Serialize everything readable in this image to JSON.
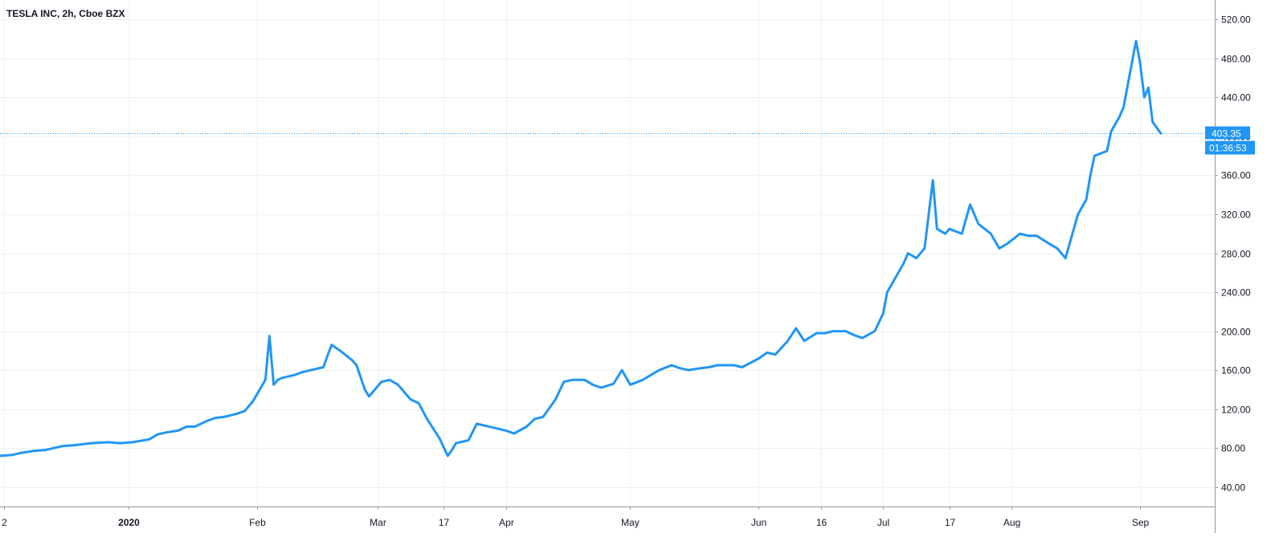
{
  "chart_data": {
    "type": "line",
    "title": "TESLA INC, 2h, Cboe BZX",
    "ylim": [
      20,
      540
    ],
    "y_ticks": [
      "40.00",
      "80.00",
      "120.00",
      "160.00",
      "200.00",
      "240.00",
      "280.00",
      "320.00",
      "360.00",
      "400.00",
      "440.00",
      "480.00",
      "520.00"
    ],
    "x_ticks": [
      {
        "label": "2",
        "date": "2019-12-02",
        "bold": false
      },
      {
        "label": "2020",
        "date": "2020-01-01",
        "bold": true
      },
      {
        "label": "Feb",
        "date": "2020-02-01",
        "bold": false
      },
      {
        "label": "Mar",
        "date": "2020-03-01",
        "bold": false
      },
      {
        "label": "17",
        "date": "2020-03-17",
        "bold": false
      },
      {
        "label": "Apr",
        "date": "2020-04-01",
        "bold": false
      },
      {
        "label": "May",
        "date": "2020-05-01",
        "bold": false
      },
      {
        "label": "Jun",
        "date": "2020-06-01",
        "bold": false
      },
      {
        "label": "16",
        "date": "2020-06-16",
        "bold": false
      },
      {
        "label": "Jul",
        "date": "2020-07-01",
        "bold": false
      },
      {
        "label": "17",
        "date": "2020-07-17",
        "bold": false
      },
      {
        "label": "Aug",
        "date": "2020-08-01",
        "bold": false
      },
      {
        "label": "Sep",
        "date": "2020-09-01",
        "bold": false
      }
    ],
    "series": [
      {
        "color": "#2196f3",
        "points": [
          [
            "2019-12-01",
            72
          ],
          [
            "2019-12-04",
            73
          ],
          [
            "2019-12-06",
            75
          ],
          [
            "2019-12-09",
            77
          ],
          [
            "2019-12-12",
            78
          ],
          [
            "2019-12-16",
            82
          ],
          [
            "2019-12-19",
            83
          ],
          [
            "2019-12-23",
            85
          ],
          [
            "2019-12-27",
            86
          ],
          [
            "2019-12-30",
            85
          ],
          [
            "2020-01-02",
            86
          ],
          [
            "2020-01-06",
            89
          ],
          [
            "2020-01-08",
            94
          ],
          [
            "2020-01-10",
            96
          ],
          [
            "2020-01-13",
            98
          ],
          [
            "2020-01-15",
            102
          ],
          [
            "2020-01-17",
            102
          ],
          [
            "2020-01-20",
            108
          ],
          [
            "2020-01-22",
            111
          ],
          [
            "2020-01-24",
            112
          ],
          [
            "2020-01-27",
            115
          ],
          [
            "2020-01-29",
            118
          ],
          [
            "2020-01-31",
            128
          ],
          [
            "2020-02-03",
            150
          ],
          [
            "2020-02-04",
            195
          ],
          [
            "2020-02-05",
            145
          ],
          [
            "2020-02-06",
            150
          ],
          [
            "2020-02-07",
            152
          ],
          [
            "2020-02-10",
            155
          ],
          [
            "2020-02-12",
            158
          ],
          [
            "2020-02-14",
            160
          ],
          [
            "2020-02-17",
            163
          ],
          [
            "2020-02-18",
            175
          ],
          [
            "2020-02-19",
            186
          ],
          [
            "2020-02-21",
            180
          ],
          [
            "2020-02-24",
            170
          ],
          [
            "2020-02-25",
            165
          ],
          [
            "2020-02-27",
            140
          ],
          [
            "2020-02-28",
            133
          ],
          [
            "2020-03-02",
            148
          ],
          [
            "2020-03-04",
            150
          ],
          [
            "2020-03-06",
            145
          ],
          [
            "2020-03-09",
            130
          ],
          [
            "2020-03-11",
            126
          ],
          [
            "2020-03-13",
            110
          ],
          [
            "2020-03-16",
            90
          ],
          [
            "2020-03-18",
            72
          ],
          [
            "2020-03-19",
            78
          ],
          [
            "2020-03-20",
            85
          ],
          [
            "2020-03-23",
            88
          ],
          [
            "2020-03-25",
            105
          ],
          [
            "2020-03-27",
            103
          ],
          [
            "2020-03-30",
            100
          ],
          [
            "2020-04-01",
            98
          ],
          [
            "2020-04-03",
            95
          ],
          [
            "2020-04-06",
            102
          ],
          [
            "2020-04-08",
            110
          ],
          [
            "2020-04-10",
            112
          ],
          [
            "2020-04-13",
            130
          ],
          [
            "2020-04-15",
            148
          ],
          [
            "2020-04-17",
            150
          ],
          [
            "2020-04-20",
            150
          ],
          [
            "2020-04-22",
            145
          ],
          [
            "2020-04-24",
            142
          ],
          [
            "2020-04-27",
            146
          ],
          [
            "2020-04-29",
            160
          ],
          [
            "2020-05-01",
            145
          ],
          [
            "2020-05-04",
            150
          ],
          [
            "2020-05-06",
            155
          ],
          [
            "2020-05-08",
            160
          ],
          [
            "2020-05-11",
            165
          ],
          [
            "2020-05-13",
            162
          ],
          [
            "2020-05-15",
            160
          ],
          [
            "2020-05-18",
            162
          ],
          [
            "2020-05-20",
            163
          ],
          [
            "2020-05-22",
            165
          ],
          [
            "2020-05-26",
            165
          ],
          [
            "2020-05-28",
            163
          ],
          [
            "2020-06-01",
            172
          ],
          [
            "2020-06-03",
            178
          ],
          [
            "2020-06-05",
            176
          ],
          [
            "2020-06-08",
            190
          ],
          [
            "2020-06-10",
            203
          ],
          [
            "2020-06-12",
            190
          ],
          [
            "2020-06-15",
            198
          ],
          [
            "2020-06-17",
            198
          ],
          [
            "2020-06-19",
            200
          ],
          [
            "2020-06-22",
            200
          ],
          [
            "2020-06-24",
            196
          ],
          [
            "2020-06-26",
            193
          ],
          [
            "2020-06-29",
            200
          ],
          [
            "2020-07-01",
            218
          ],
          [
            "2020-07-02",
            240
          ],
          [
            "2020-07-06",
            270
          ],
          [
            "2020-07-07",
            280
          ],
          [
            "2020-07-09",
            275
          ],
          [
            "2020-07-11",
            285
          ],
          [
            "2020-07-13",
            355
          ],
          [
            "2020-07-14",
            305
          ],
          [
            "2020-07-16",
            300
          ],
          [
            "2020-07-17",
            305
          ],
          [
            "2020-07-20",
            300
          ],
          [
            "2020-07-22",
            330
          ],
          [
            "2020-07-24",
            310
          ],
          [
            "2020-07-27",
            300
          ],
          [
            "2020-07-29",
            285
          ],
          [
            "2020-07-31",
            290
          ],
          [
            "2020-08-03",
            300
          ],
          [
            "2020-08-05",
            298
          ],
          [
            "2020-08-07",
            298
          ],
          [
            "2020-08-10",
            290
          ],
          [
            "2020-08-12",
            285
          ],
          [
            "2020-08-13",
            280
          ],
          [
            "2020-08-14",
            275
          ],
          [
            "2020-08-17",
            320
          ],
          [
            "2020-08-19",
            335
          ],
          [
            "2020-08-20",
            360
          ],
          [
            "2020-08-21",
            380
          ],
          [
            "2020-08-24",
            385
          ],
          [
            "2020-08-25",
            405
          ],
          [
            "2020-08-27",
            420
          ],
          [
            "2020-08-28",
            430
          ],
          [
            "2020-08-31",
            498
          ],
          [
            "2020-09-01",
            475
          ],
          [
            "2020-09-02",
            440
          ],
          [
            "2020-09-03",
            450
          ],
          [
            "2020-09-04",
            415
          ],
          [
            "2020-09-06",
            403
          ]
        ]
      }
    ],
    "last_value": {
      "price": "403.35",
      "countdown": "01:36:53",
      "value": 403.35
    },
    "grid": true,
    "colors": {
      "line": "#2196f3",
      "badge": "#2196f3",
      "grid": "#eef1f4",
      "axis": "#9598a1",
      "text": "#131722"
    }
  }
}
